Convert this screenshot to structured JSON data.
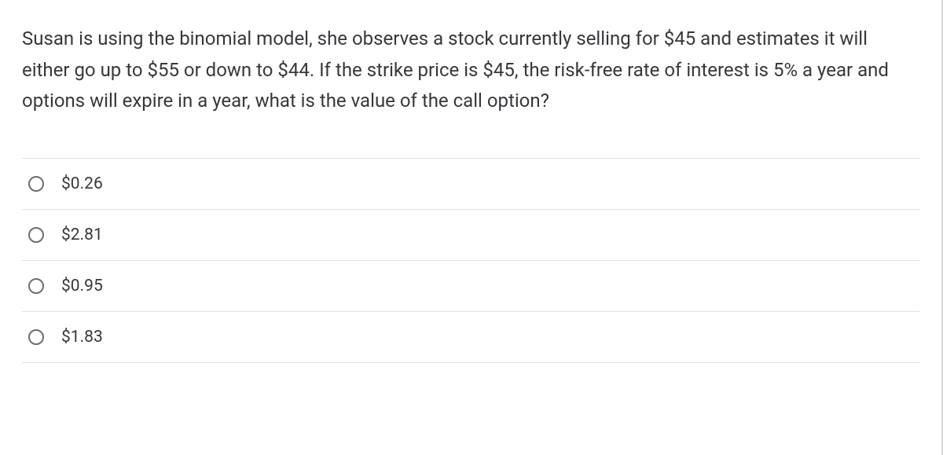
{
  "question": {
    "text": "Susan is using the binomial model, she observes a stock currently selling for $45 and estimates it will either go up to $55 or down to $44.  If the strike price is $45, the risk-free rate of interest is 5% a year and options will expire in a year, what is the value of the call option?"
  },
  "options": [
    {
      "label": "$0.26"
    },
    {
      "label": "$2.81"
    },
    {
      "label": "$0.95"
    },
    {
      "label": "$1.83"
    }
  ],
  "styling": {
    "text_color": "#35383b",
    "border_color": "#dfe0e2",
    "radio_border_color": "#6b6f73",
    "right_border_color": "#d6d6d6",
    "question_fontsize": 24,
    "option_fontsize": 21
  }
}
